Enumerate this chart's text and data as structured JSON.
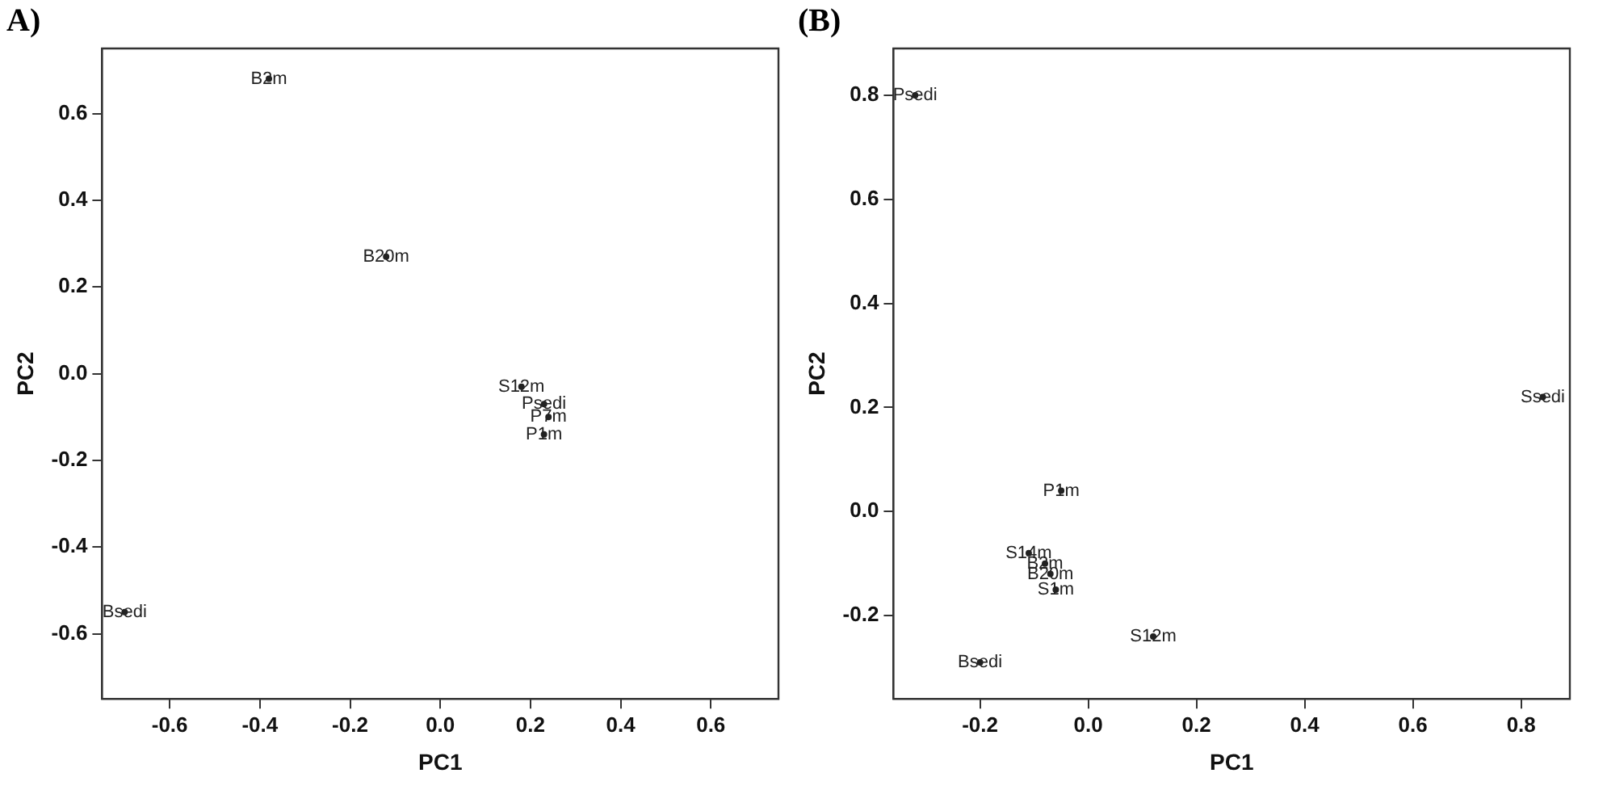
{
  "chart_data": [
    {
      "type": "scatter",
      "title": "A)",
      "xlabel": "PC1",
      "ylabel": "PC2",
      "xlim": [
        -0.75,
        0.75
      ],
      "ylim": [
        -0.75,
        0.75
      ],
      "xticks": [
        -0.6,
        -0.4,
        -0.2,
        {
          "value": 0,
          "label": "0.0"
        },
        0.2,
        0.4,
        0.6
      ],
      "yticks": [
        -0.6,
        -0.4,
        -0.2,
        {
          "value": 0,
          "label": "0.0"
        },
        0.2,
        0.4,
        0.6
      ],
      "grid": false,
      "legend": false,
      "marker": "circle",
      "series": [
        {
          "color": "#222222",
          "x": [
            -0.38,
            -0.12,
            0.18,
            0.23,
            0.24,
            0.23,
            -0.7
          ],
          "values": [
            0.68,
            0.27,
            -0.03,
            -0.07,
            -0.1,
            -0.14,
            -0.55
          ],
          "value_labels": [
            "B2m",
            "B20m",
            "S12m",
            "Psedi",
            "P7m",
            "P1m",
            "Bsedi"
          ]
        }
      ]
    },
    {
      "type": "scatter",
      "title": "(B)",
      "xlabel": "PC1",
      "ylabel": "PC2",
      "xlim": [
        -0.36,
        0.89
      ],
      "ylim": [
        -0.36,
        0.89
      ],
      "xticks": [
        -0.2,
        {
          "value": 0,
          "label": "0.0"
        },
        0.2,
        0.4,
        0.6,
        0.8
      ],
      "yticks": [
        -0.2,
        {
          "value": 0,
          "label": "0.0"
        },
        0.2,
        0.4,
        0.6,
        0.8
      ],
      "grid": false,
      "legend": false,
      "marker": "circle",
      "series": [
        {
          "color": "#222222",
          "x": [
            -0.32,
            0.84,
            -0.05,
            -0.11,
            -0.08,
            -0.07,
            -0.06,
            0.12,
            -0.2
          ],
          "values": [
            0.8,
            0.22,
            0.04,
            -0.08,
            -0.1,
            -0.12,
            -0.15,
            -0.24,
            -0.29
          ],
          "value_labels": [
            "Psedi",
            "Ssedi",
            "P1m",
            "S14m",
            "B2m",
            "B20m",
            "S1m",
            "S12m",
            "Bsedi"
          ]
        }
      ]
    }
  ]
}
